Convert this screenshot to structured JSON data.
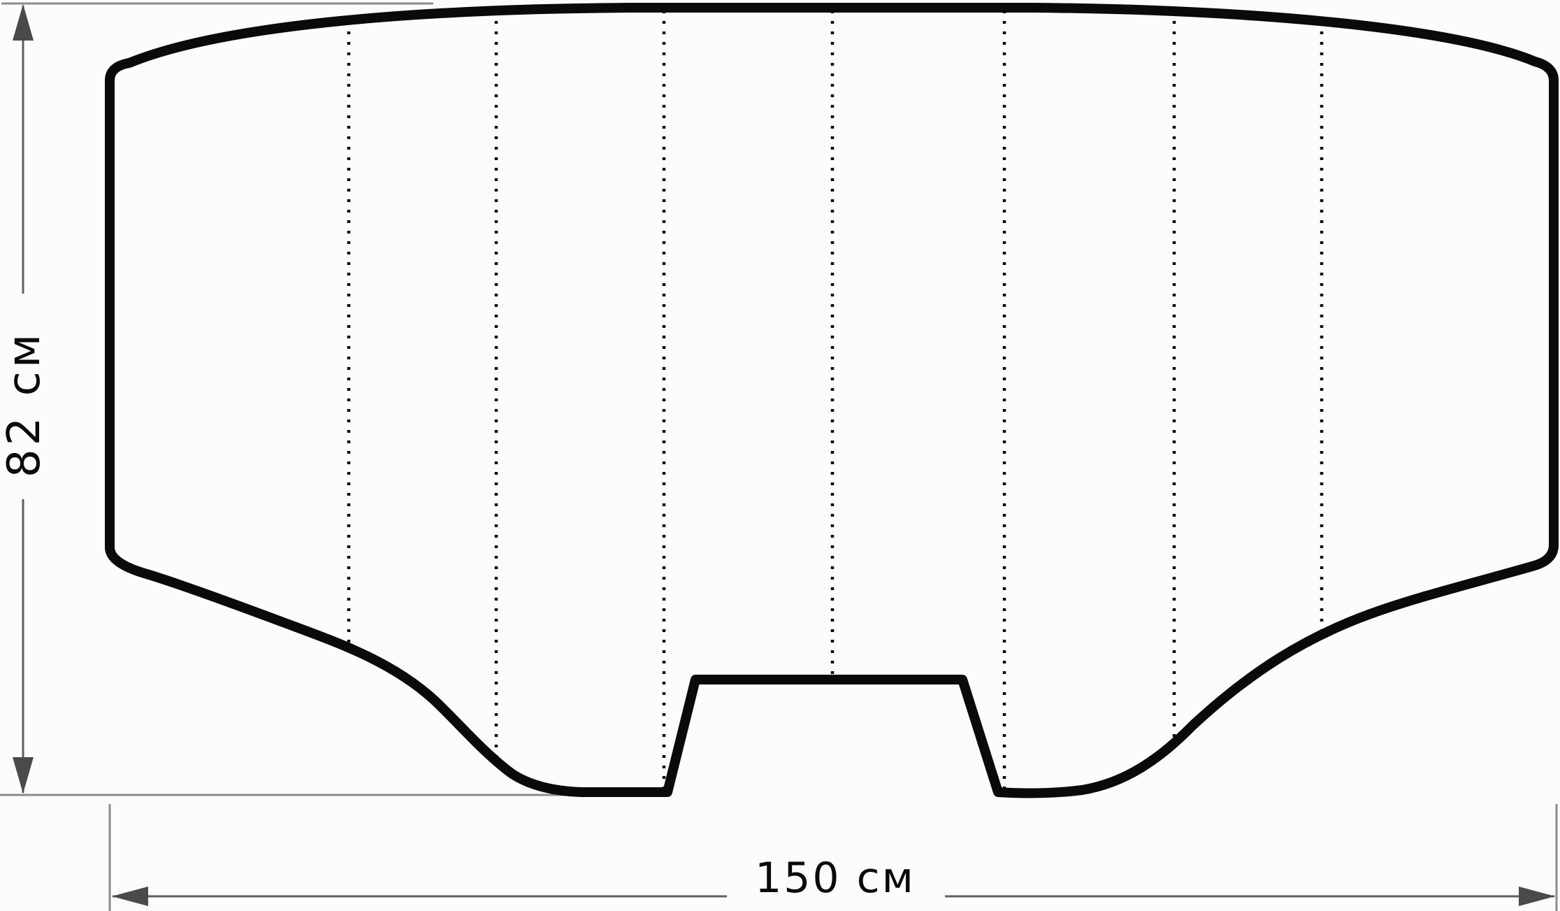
{
  "diagram": {
    "type": "technical-dimension-drawing",
    "shape": "curved panel with trapezoidal notch at bottom center and dotted fold lines",
    "height_dimension": {
      "label": "82 см",
      "value": "82",
      "unit": "см"
    },
    "width_dimension": {
      "label": "150 см",
      "value": "150",
      "unit": "см"
    },
    "fold_line_positions": [
      499,
      710,
      950,
      1191,
      1437,
      1680,
      1891
    ],
    "panel_count": 8
  },
  "colors": {
    "outline": "#0a0a0a",
    "dimension_line": "#5f5f5f",
    "extension_line": "#8c8c8c",
    "arrow": "#4a4a4a",
    "background": "#fcfcfc",
    "text": "#0a0a0a"
  }
}
